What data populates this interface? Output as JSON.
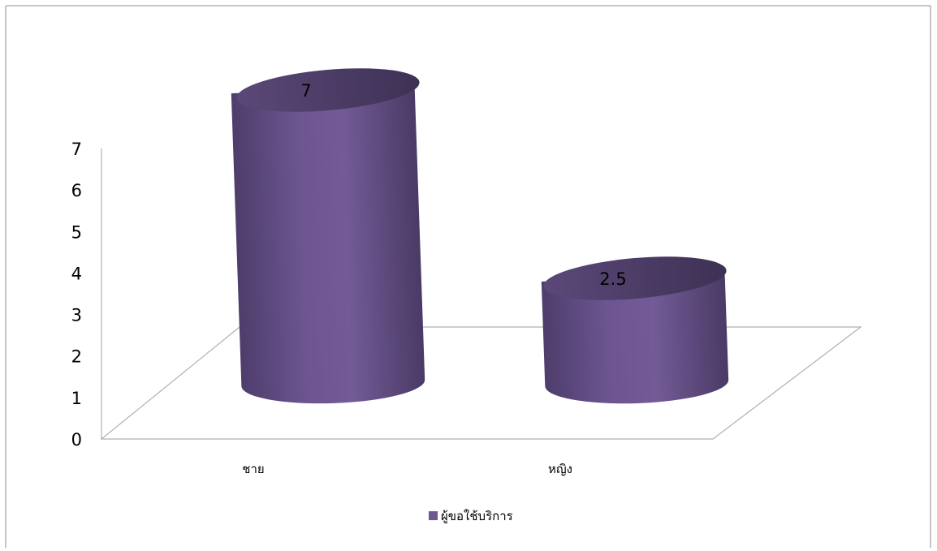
{
  "chart_data": {
    "type": "bar",
    "shape": "cylinder-3d",
    "categories": [
      "ชาย",
      "หญิง"
    ],
    "series": [
      {
        "name": "ผู้ขอใช้บริการ",
        "values": [
          7,
          2.5
        ],
        "color": "#6f5792"
      }
    ],
    "data_labels": [
      "7",
      "2.5"
    ],
    "ylim": [
      0,
      7
    ],
    "yticks": [
      "0",
      "1",
      "2",
      "3",
      "4",
      "5",
      "6",
      "7"
    ],
    "grid": false,
    "legend_position": "bottom"
  },
  "colors": {
    "bar_body": "#6f5792",
    "bar_top": "#4a3b63",
    "axis": "#b0b0b0",
    "text": "#000000"
  }
}
